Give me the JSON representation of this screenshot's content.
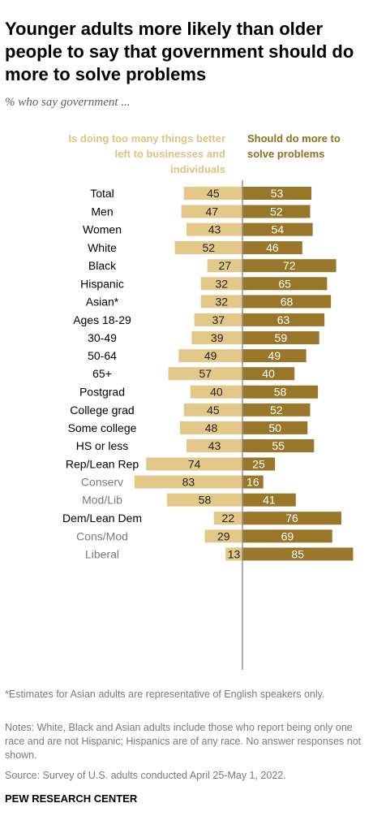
{
  "title": "Younger adults more likely than older people to say that government should do more to solve problems",
  "subtitle": "% who say government ...",
  "colors": {
    "left": "#e2c889",
    "right": "#98772a",
    "divider": "#8c8c8c",
    "label_main": "#000000",
    "label_sub": "#7a7a7a"
  },
  "chart_data": {
    "type": "bar",
    "orientation": "horizontal-diverging",
    "series": [
      {
        "name": "Is doing too many things better left to businesses and individuals",
        "values": [
          45,
          47,
          43,
          52,
          27,
          32,
          32,
          37,
          39,
          49,
          57,
          40,
          45,
          48,
          43,
          74,
          83,
          58,
          22,
          29,
          13
        ]
      },
      {
        "name": "Should do more to solve problems",
        "values": [
          53,
          52,
          54,
          46,
          72,
          65,
          68,
          63,
          59,
          49,
          40,
          58,
          52,
          50,
          55,
          25,
          16,
          41,
          76,
          69,
          85
        ]
      }
    ],
    "categories": [
      "Total",
      "Men",
      "Women",
      "White",
      "Black",
      "Hispanic",
      "Asian*",
      "Ages 18-29",
      "30-49",
      "50-64",
      "65+",
      "Postgrad",
      "College grad",
      "Some college",
      "HS or less",
      "Rep/Lean Rep",
      "Conserv",
      "Mod/Lib",
      "Dem/Lean Dem",
      "Cons/Mod",
      "Liberal"
    ],
    "subcategories": [
      "Conserv",
      "Mod/Lib",
      "Cons/Mod",
      "Liberal"
    ],
    "groups": [
      [
        0
      ],
      [
        1,
        2
      ],
      [
        3,
        4,
        5,
        6
      ],
      [
        7,
        8,
        9,
        10
      ],
      [
        11,
        12,
        13,
        14
      ],
      [
        15,
        16,
        17
      ],
      [
        18,
        19,
        20
      ]
    ],
    "xlim": [
      0,
      100
    ]
  },
  "footnotes": [
    "*Estimates for Asian adults are representative of English speakers only.",
    "Notes: White, Black and Asian adults include those who report being only one race and are not Hispanic; Hispanics are of any race. No answer responses not shown.",
    "Source: Survey of U.S. adults conducted April 25-May 1, 2022."
  ],
  "brand": "PEW RESEARCH CENTER"
}
